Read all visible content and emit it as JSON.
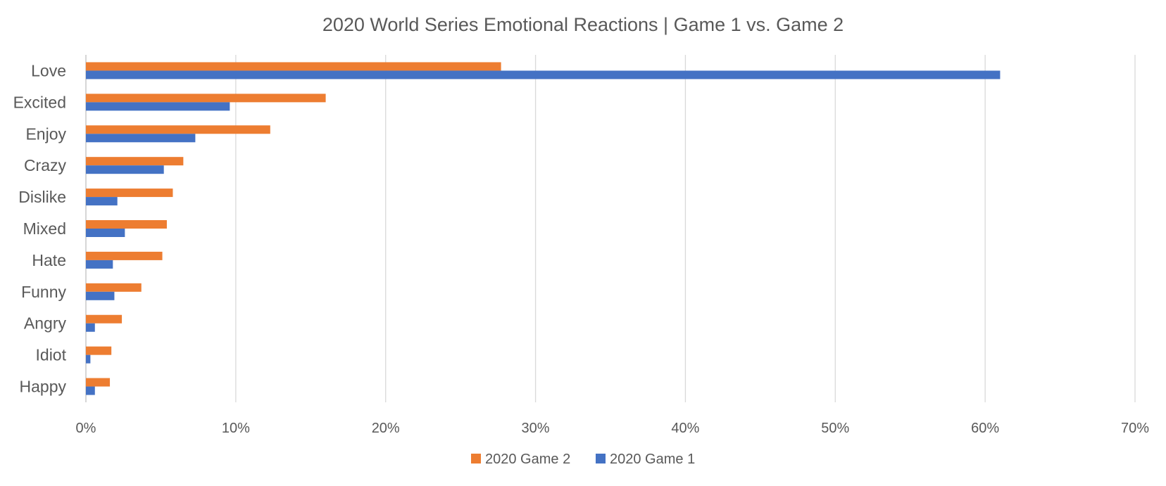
{
  "chart_data": {
    "type": "bar",
    "orientation": "horizontal",
    "title": "2020 World Series Emotional Reactions | Game 1 vs. Game 2",
    "categories": [
      "Love",
      "Excited",
      "Enjoy",
      "Crazy",
      "Dislike",
      "Mixed",
      "Hate",
      "Funny",
      "Angry",
      "Idiot",
      "Happy"
    ],
    "series": [
      {
        "name": "2020 Game 2",
        "color": "#ED7D31",
        "values": [
          27.7,
          16.0,
          12.3,
          6.5,
          5.8,
          5.4,
          5.1,
          3.7,
          2.4,
          1.7,
          1.6
        ]
      },
      {
        "name": "2020 Game 1",
        "color": "#4472C4",
        "values": [
          61.0,
          9.6,
          7.3,
          5.2,
          2.1,
          2.6,
          1.8,
          1.9,
          0.6,
          0.3,
          0.6
        ]
      }
    ],
    "xlim": [
      0,
      70
    ],
    "xticks": [
      0,
      10,
      20,
      30,
      40,
      50,
      60,
      70
    ],
    "xtick_format": "percent",
    "grid": "vertical",
    "legend_position": "bottom"
  }
}
